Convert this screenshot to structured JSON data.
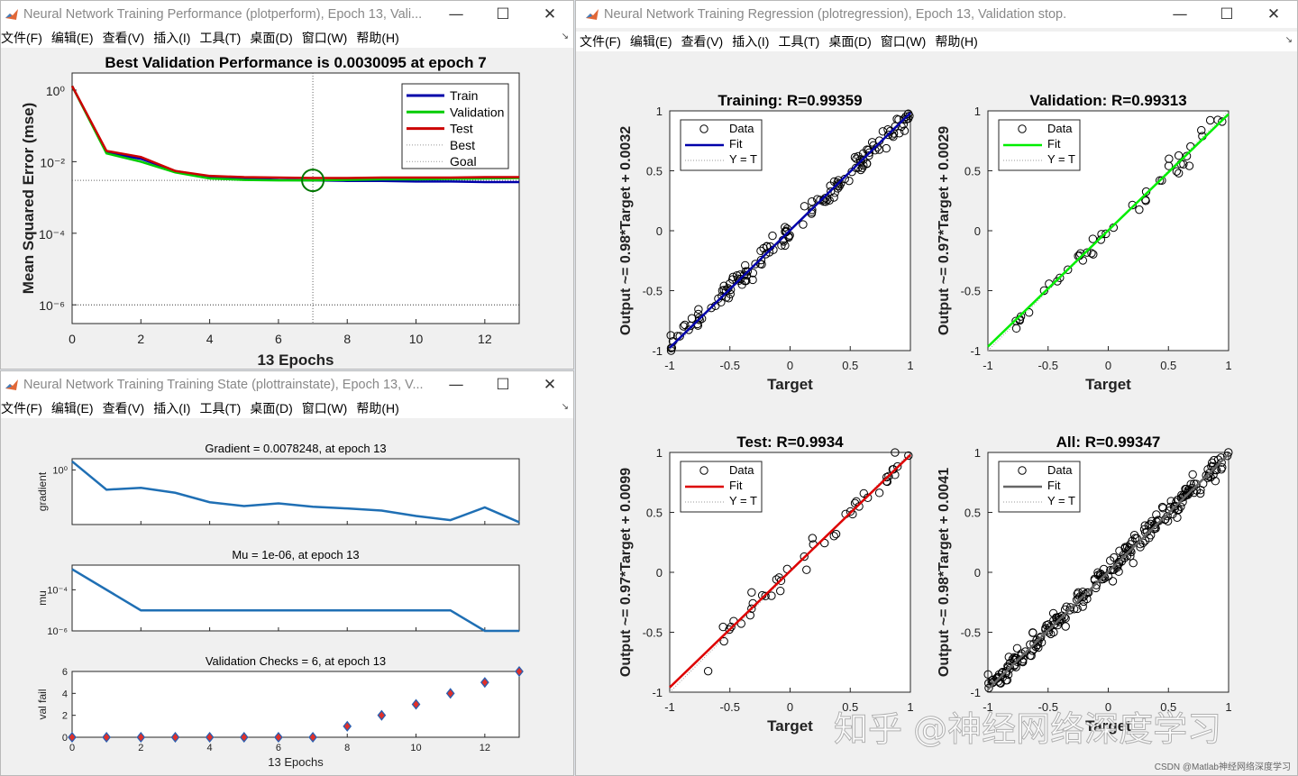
{
  "windows": {
    "perform": {
      "title": "Neural Network Training Performance (plotperform), Epoch 13, Vali...",
      "menu": [
        "文件(F)",
        "编辑(E)",
        "查看(V)",
        "插入(I)",
        "工具(T)",
        "桌面(D)",
        "窗口(W)",
        "帮助(H)"
      ],
      "chart_data": {
        "type": "line",
        "title": "Best Validation Performance is 0.0030095 at epoch 7",
        "xlabel": "13 Epochs",
        "ylabel": "Mean Squared Error  (mse)",
        "xlim": [
          0,
          13
        ],
        "ylim": [
          3e-07,
          3
        ],
        "yscale": "log",
        "xticks": [
          "0",
          "2",
          "4",
          "6",
          "8",
          "10",
          "12"
        ],
        "yticks": [
          "10⁰",
          "10⁻²",
          "10⁻⁴",
          "10⁻⁶"
        ],
        "x": [
          0,
          1,
          2,
          3,
          4,
          5,
          6,
          7,
          8,
          9,
          10,
          11,
          12,
          13
        ],
        "series": [
          {
            "name": "Train",
            "color": "#0000aa",
            "values": [
              1.3,
              0.018,
              0.012,
              0.0055,
              0.0038,
              0.0034,
              0.0031,
              0.003,
              0.0029,
              0.0029,
              0.0028,
              0.0028,
              0.0027,
              0.0027
            ]
          },
          {
            "name": "Validation",
            "color": "#00cc00",
            "values": [
              1.3,
              0.017,
              0.01,
              0.005,
              0.0034,
              0.0031,
              0.003,
              0.0030095,
              0.0031,
              0.0032,
              0.0032,
              0.0033,
              0.0034,
              0.0035
            ]
          },
          {
            "name": "Test",
            "color": "#cc0000",
            "values": [
              1.3,
              0.02,
              0.0135,
              0.0055,
              0.004,
              0.0037,
              0.0036,
              0.0035,
              0.0035,
              0.0036,
              0.0036,
              0.0036,
              0.0037,
              0.0037
            ]
          }
        ],
        "best": {
          "epoch": 7,
          "value": 0.0030095,
          "label": "Best"
        },
        "goal": {
          "value": 1e-06,
          "label": "Goal"
        },
        "legend": [
          "Train",
          "Validation",
          "Test",
          "Best",
          "Goal"
        ],
        "legend_position": "top-right",
        "grid": false
      }
    },
    "trainstate": {
      "title": "Neural Network Training Training State (plottrainstate), Epoch 13, V...",
      "menu": [
        "文件(F)",
        "编辑(E)",
        "查看(V)",
        "插入(I)",
        "工具(T)",
        "桌面(D)",
        "窗口(W)",
        "帮助(H)"
      ],
      "xlabel": "13 Epochs",
      "chart_data": [
        {
          "type": "line",
          "title": "Gradient = 0.0078248, at epoch 13",
          "ylabel": "gradient",
          "yscale": "log",
          "ytick_labels": [
            "10⁰"
          ],
          "x": [
            0,
            1,
            2,
            3,
            4,
            5,
            6,
            7,
            8,
            9,
            10,
            11,
            12,
            13
          ],
          "values": [
            2.2,
            0.16,
            0.19,
            0.12,
            0.05,
            0.035,
            0.045,
            0.033,
            0.028,
            0.023,
            0.014,
            0.0095,
            0.031,
            0.0078248
          ]
        },
        {
          "type": "line",
          "title": "Mu = 1e-06, at epoch 13",
          "ylabel": "mu",
          "yscale": "log",
          "ytick_labels": [
            "10⁻⁴",
            "10⁻⁶"
          ],
          "x": [
            0,
            1,
            2,
            3,
            4,
            5,
            6,
            7,
            8,
            9,
            10,
            11,
            12,
            13
          ],
          "values": [
            0.001,
            0.0001,
            1e-05,
            1e-05,
            1e-05,
            1e-05,
            1e-05,
            1e-05,
            1e-05,
            1e-05,
            1e-05,
            1e-05,
            1e-06,
            1e-06
          ]
        },
        {
          "type": "scatter",
          "title": "Validation Checks = 6, at epoch 13",
          "ylabel": "val fail",
          "ylim": [
            0,
            6
          ],
          "xtick_labels": [
            "0",
            "2",
            "4",
            "6",
            "8",
            "10",
            "12"
          ],
          "ytick_labels": [
            "0",
            "2",
            "4",
            "6"
          ],
          "x": [
            0,
            1,
            2,
            3,
            4,
            5,
            6,
            7,
            8,
            9,
            10,
            11,
            12,
            13
          ],
          "values": [
            0,
            0,
            0,
            0,
            0,
            0,
            0,
            0,
            1,
            2,
            3,
            4,
            5,
            6
          ]
        }
      ]
    },
    "regression": {
      "title": "Neural Network Training Regression (plotregression), Epoch 13, Validation stop.",
      "menu": [
        "文件(F)",
        "编辑(E)",
        "查看(V)",
        "插入(I)",
        "工具(T)",
        "桌面(D)",
        "窗口(W)",
        "帮助(H)"
      ],
      "chart_data": [
        {
          "type": "scatter",
          "title": "Training: R=0.99359",
          "ylabel": "Output ~= 0.98*Target + 0.0032",
          "xlabel": "Target",
          "fit_color": "#0000aa",
          "slope": 0.98,
          "intercept": 0.0032,
          "n": 150,
          "noise": 0.045,
          "xrange": [
            -1,
            1
          ]
        },
        {
          "type": "scatter",
          "title": "Validation: R=0.99313",
          "ylabel": "Output ~= 0.97*Target + 0.0029",
          "xlabel": "Target",
          "fit_color": "#00ee00",
          "slope": 0.97,
          "intercept": 0.0029,
          "n": 45,
          "noise": 0.05,
          "xrange": [
            -0.78,
            0.95
          ]
        },
        {
          "type": "scatter",
          "title": "Test: R=0.9934",
          "ylabel": "Output ~= 0.97*Target + 0.0099",
          "xlabel": "Target",
          "fit_color": "#dd0000",
          "slope": 0.97,
          "intercept": 0.0099,
          "n": 45,
          "noise": 0.05,
          "xrange": [
            -0.7,
            1
          ]
        },
        {
          "type": "scatter",
          "title": "All: R=0.99347",
          "ylabel": "Output ~= 0.98*Target + 0.0041",
          "xlabel": "Target",
          "fit_color": "#666666",
          "slope": 0.98,
          "intercept": 0.0041,
          "n": 240,
          "noise": 0.045,
          "xrange": [
            -1,
            1
          ]
        }
      ],
      "axis_ticks": [
        "-1",
        "-0.5",
        "0",
        "0.5",
        "1"
      ],
      "legend": [
        "Data",
        "Fit",
        "Y = T"
      ]
    }
  },
  "watermark": "知乎 @神经网络深度学习",
  "credit": "CSDN @Matlab神经网络深度学习"
}
